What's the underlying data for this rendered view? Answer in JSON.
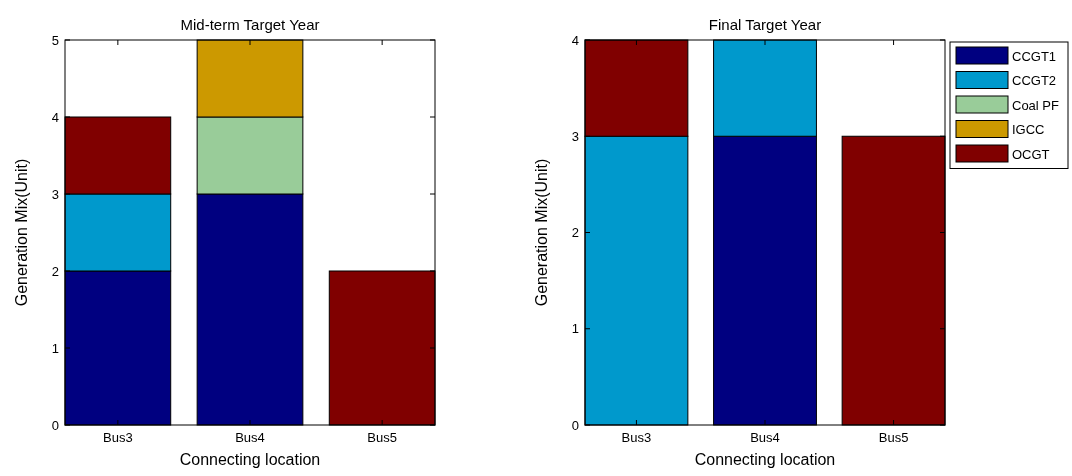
{
  "chart_data": [
    {
      "type": "bar",
      "title": "Mid-term Target Year",
      "xlabel": "Connecting location",
      "ylabel": "Generation Mix(Unit)",
      "categories": [
        "Bus3",
        "Bus4",
        "Bus5"
      ],
      "stacked": true,
      "ylim": [
        0,
        5
      ],
      "yticks": [
        0,
        1,
        2,
        3,
        4,
        5
      ],
      "legend": false,
      "series": [
        {
          "color": "#000080",
          "values": [
            2,
            3,
            0
          ]
        },
        {
          "color": "#0099cc",
          "values": [
            1,
            0,
            0
          ]
        },
        {
          "color": "#99cc99",
          "values": [
            0,
            1,
            0
          ]
        },
        {
          "color": "#cc9900",
          "values": [
            0,
            1,
            0
          ]
        },
        {
          "color": "#800000",
          "values": [
            1,
            0,
            2
          ]
        }
      ]
    },
    {
      "type": "bar",
      "title": "Final Target Year",
      "xlabel": "Connecting location",
      "ylabel": "Generation Mix(Unit)",
      "categories": [
        "Bus3",
        "Bus4",
        "Bus5"
      ],
      "stacked": true,
      "ylim": [
        0,
        4
      ],
      "yticks": [
        0,
        1,
        2,
        3,
        4
      ],
      "legend": "top right",
      "series": [
        {
          "name": "CCGT1",
          "color": "#000080",
          "values": [
            0,
            3,
            0
          ]
        },
        {
          "name": "CCGT2",
          "color": "#0099cc",
          "values": [
            3,
            1,
            0
          ]
        },
        {
          "name": "Coal PF",
          "color": "#99cc99",
          "values": [
            0,
            0,
            0
          ]
        },
        {
          "name": "IGCC",
          "color": "#cc9900",
          "values": [
            0,
            0,
            0
          ]
        },
        {
          "name": "OCGT",
          "color": "#800000",
          "values": [
            1,
            0,
            3
          ]
        }
      ]
    }
  ]
}
